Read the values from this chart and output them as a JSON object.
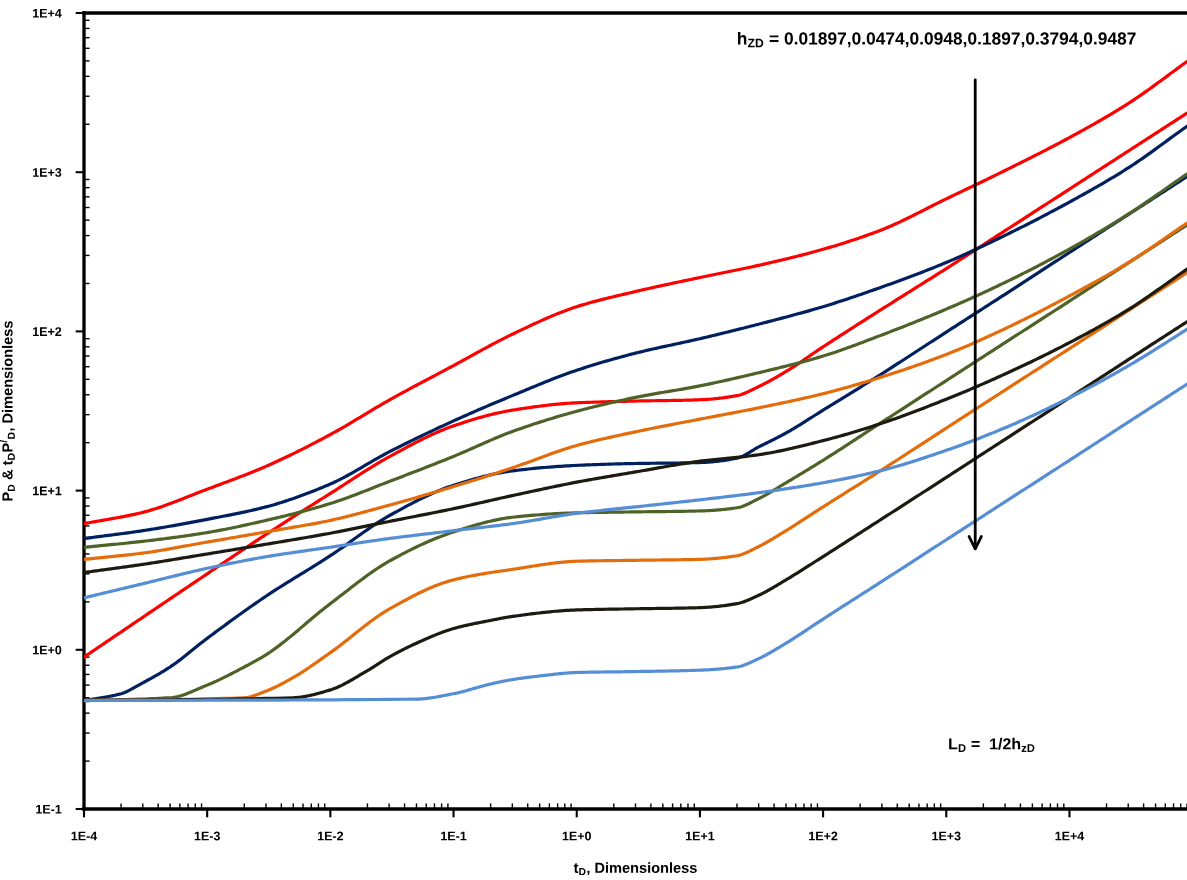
{
  "chart_data": {
    "type": "line",
    "log": "xy",
    "line_style": "solid",
    "xlabel": "t$_{D}$, Dimensionless",
    "ylabel": "P$_{D}$ & t$_{D}$P$^{/}$$_{D}$, Dimensionless",
    "xlim": [
      0.0001,
      90000
    ],
    "ylim": [
      0.1,
      10000
    ],
    "xticks": [
      {
        "value": 0.0001,
        "label": "1E-4"
      },
      {
        "value": 0.001,
        "label": "1E-3"
      },
      {
        "value": 0.01,
        "label": "1E-2"
      },
      {
        "value": 0.1,
        "label": "1E-1"
      },
      {
        "value": 1,
        "label": "1E+0"
      },
      {
        "value": 10,
        "label": "1E+1"
      },
      {
        "value": 100,
        "label": "1E+2"
      },
      {
        "value": 1000,
        "label": "1E+3"
      },
      {
        "value": 10000,
        "label": "1E+4"
      }
    ],
    "yticks": [
      {
        "value": 0.1,
        "label": "1E-1"
      },
      {
        "value": 1,
        "label": "1E+0"
      },
      {
        "value": 10,
        "label": "1E+1"
      },
      {
        "value": 100,
        "label": "1E+2"
      },
      {
        "value": 1000,
        "label": "1E+3"
      },
      {
        "value": 10000,
        "label": "1E+4"
      }
    ],
    "annotations": [
      "h$_{ZD}$ = 0.01897,0.0474,0.0948,0.1897,0.3794,0.9487",
      "L$_{D}$ =  1/2h$_{zD}$"
    ],
    "series": [
      {
        "color": "#ff0000",
        "x": [
          0.0001,
          0.0003,
          0.001,
          0.003,
          0.01,
          0.03,
          0.1,
          0.3,
          1,
          3,
          10,
          30,
          100,
          300,
          1000,
          3000,
          10000,
          30000,
          90000
        ],
        "values": [
          6.2,
          7.3,
          10.2,
          14.2,
          22.5,
          37,
          61,
          96,
          143,
          178,
          218,
          260,
          328,
          435,
          680,
          1025,
          1650,
          2700,
          4955
        ]
      },
      {
        "color": "#ff0000",
        "x": [
          0.0001,
          0.0003,
          0.001,
          0.003,
          0.01,
          0.03,
          0.1,
          0.3,
          1,
          3,
          10,
          20,
          30,
          50,
          100,
          300,
          1000,
          3000,
          10000,
          30000,
          90000
        ],
        "values": [
          0.9,
          1.6,
          3.0,
          5.3,
          9.6,
          16.3,
          25.5,
          32,
          35.6,
          36.5,
          37.2,
          39.5,
          45,
          56,
          80,
          138,
          248,
          429,
          783,
          1357,
          2350
        ]
      },
      {
        "color": "#002060",
        "x": [
          0.0001,
          0.0003,
          0.001,
          0.003,
          0.01,
          0.03,
          0.1,
          0.3,
          1,
          3,
          10,
          30,
          100,
          300,
          1000,
          3000,
          10000,
          30000,
          90000
        ],
        "values": [
          5.0,
          5.6,
          6.6,
          7.9,
          11.0,
          17.5,
          27.4,
          39.5,
          57,
          73,
          90,
          111,
          143,
          190,
          271,
          401,
          649,
          1064,
          1945
        ]
      },
      {
        "color": "#002060",
        "x": [
          0.0001,
          0.0002,
          0.0003,
          0.0005,
          0.001,
          0.003,
          0.01,
          0.03,
          0.1,
          0.3,
          1,
          3,
          10,
          20,
          30,
          50,
          100,
          300,
          1000,
          3000,
          10000,
          30000,
          90000
        ],
        "values": [
          0.48,
          0.53,
          0.62,
          0.78,
          1.18,
          2.17,
          3.9,
          6.95,
          10.8,
          13.3,
          14.4,
          14.8,
          15.0,
          16.0,
          18.8,
          23.0,
          32,
          54.2,
          99,
          171,
          313,
          542,
          939
        ]
      },
      {
        "color": "#4f6228",
        "x": [
          0.0001,
          0.0003,
          0.001,
          0.003,
          0.01,
          0.03,
          0.1,
          0.3,
          1,
          3,
          10,
          30,
          100,
          300,
          1000,
          3000,
          10000,
          30000,
          90000
        ],
        "values": [
          4.4,
          4.8,
          5.45,
          6.5,
          8.3,
          11.4,
          16.4,
          23.5,
          31.5,
          38.5,
          45.5,
          55,
          70,
          95,
          138,
          203,
          329,
          545,
          975
        ]
      },
      {
        "color": "#4f6228",
        "x": [
          0.0001,
          0.0005,
          0.001,
          0.002,
          0.003,
          0.01,
          0.03,
          0.1,
          0.3,
          1,
          3,
          10,
          20,
          30,
          50,
          100,
          300,
          1000,
          3000,
          10000,
          30000,
          90000
        ],
        "values": [
          0.48,
          0.5,
          0.6,
          0.78,
          0.93,
          1.95,
          3.6,
          5.5,
          6.8,
          7.25,
          7.35,
          7.45,
          7.8,
          8.9,
          11.2,
          15.5,
          26.9,
          49.1,
          85,
          155,
          269,
          466
        ]
      },
      {
        "color": "#e46c0a",
        "x": [
          0.0001,
          0.0003,
          0.001,
          0.003,
          0.01,
          0.03,
          0.1,
          0.3,
          1,
          3,
          10,
          30,
          100,
          300,
          1000,
          3000,
          10000,
          30000,
          90000
        ],
        "values": [
          3.7,
          4.05,
          4.75,
          5.5,
          6.5,
          8.1,
          10.6,
          13.9,
          19.2,
          23.4,
          28.1,
          33.1,
          40.6,
          51.8,
          71.6,
          104,
          167,
          270,
          479
        ]
      },
      {
        "color": "#e46c0a",
        "x": [
          0.0001,
          0.002,
          0.003,
          0.005,
          0.01,
          0.03,
          0.1,
          0.3,
          1,
          3,
          10,
          20,
          30,
          50,
          100,
          300,
          1000,
          3000,
          10000,
          30000,
          90000
        ],
        "values": [
          0.48,
          0.5,
          0.55,
          0.67,
          0.96,
          1.8,
          2.75,
          3.2,
          3.6,
          3.65,
          3.7,
          3.9,
          4.45,
          5.6,
          7.9,
          13.5,
          24.7,
          42.8,
          78,
          135,
          234
        ]
      },
      {
        "color": "#1d1b10",
        "x": [
          0.0001,
          0.0003,
          0.001,
          0.003,
          0.01,
          0.03,
          0.1,
          0.3,
          1,
          3,
          10,
          30,
          100,
          300,
          1000,
          3000,
          10000,
          30000,
          90000
        ],
        "values": [
          3.06,
          3.44,
          4.0,
          4.6,
          5.4,
          6.4,
          7.7,
          9.3,
          11.3,
          13.1,
          15.3,
          16.8,
          20.6,
          26.5,
          37.5,
          54,
          85,
          137,
          246
        ]
      },
      {
        "color": "#1d1b10",
        "x": [
          0.0001,
          0.005,
          0.01,
          0.02,
          0.03,
          0.05,
          0.1,
          0.2,
          0.3,
          1,
          3,
          10,
          20,
          30,
          50,
          100,
          300,
          1000,
          3000,
          10000,
          30000,
          90000
        ],
        "values": [
          0.48,
          0.5,
          0.56,
          0.74,
          0.9,
          1.1,
          1.36,
          1.53,
          1.62,
          1.78,
          1.81,
          1.84,
          1.95,
          2.2,
          2.75,
          3.85,
          6.64,
          12.1,
          21,
          38.3,
          66.4,
          115
        ]
      },
      {
        "color": "#558ed5",
        "x": [
          0.0001,
          0.0003,
          0.001,
          0.003,
          0.01,
          0.03,
          0.1,
          0.3,
          1,
          3,
          10,
          30,
          100,
          300,
          1000,
          3000,
          10000,
          30000,
          90000
        ],
        "values": [
          2.12,
          2.6,
          3.25,
          3.84,
          4.41,
          5.0,
          5.6,
          6.2,
          7.2,
          7.9,
          8.75,
          9.7,
          11.2,
          13.4,
          17.9,
          24.8,
          38.3,
          60.7,
          103
        ]
      },
      {
        "color": "#558ed5",
        "x": [
          0.0001,
          0.05,
          0.1,
          0.2,
          0.3,
          0.5,
          1,
          3,
          10,
          20,
          30,
          50,
          100,
          300,
          1000,
          3000,
          10000,
          30000,
          90000
        ],
        "values": [
          0.48,
          0.49,
          0.53,
          0.61,
          0.65,
          0.685,
          0.72,
          0.73,
          0.745,
          0.78,
          0.88,
          1.1,
          1.56,
          2.69,
          4.91,
          8.5,
          15.5,
          26.9,
          46.6
        ]
      }
    ]
  }
}
